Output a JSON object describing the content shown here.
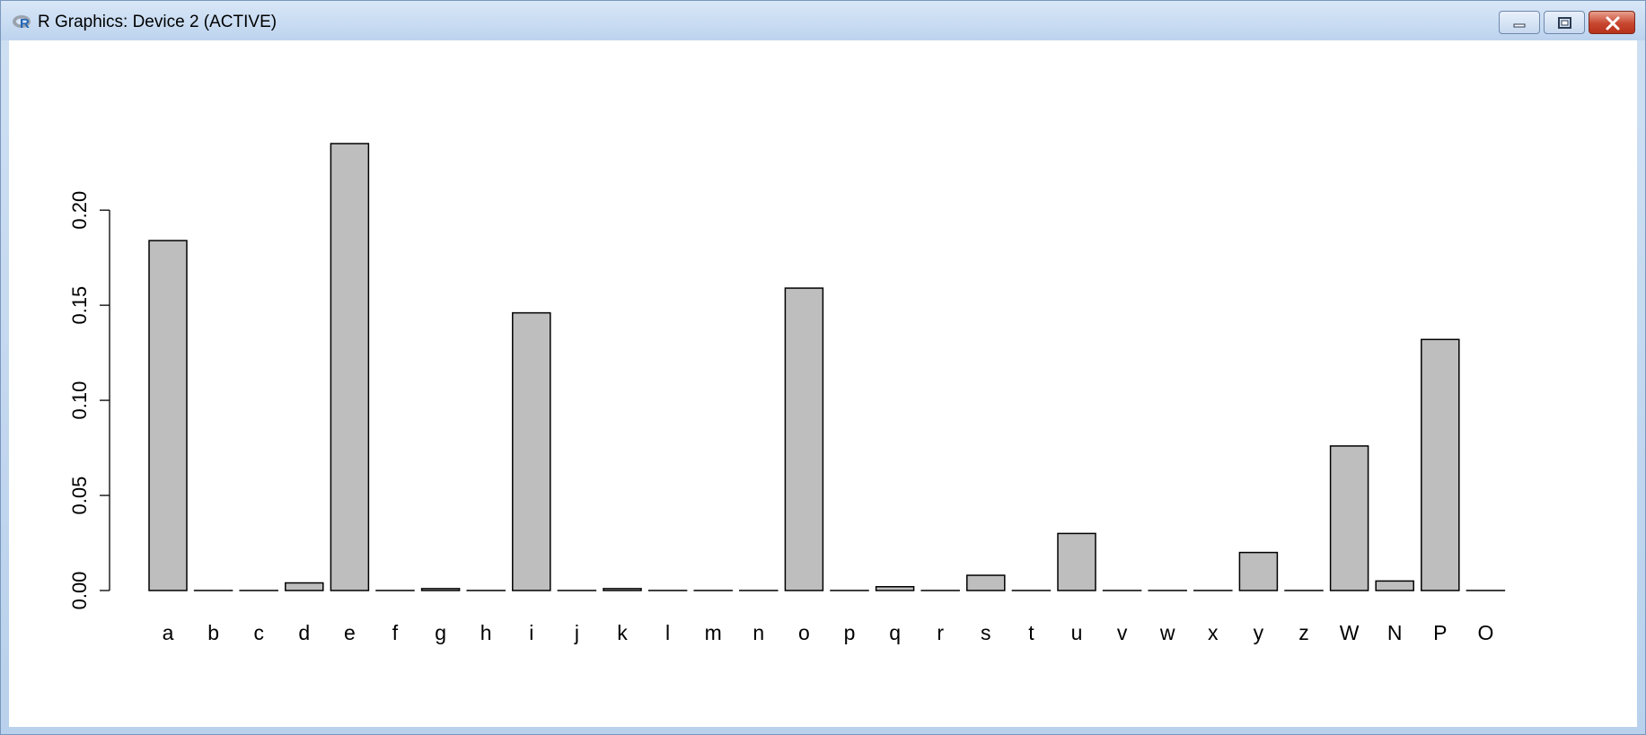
{
  "window": {
    "title": "R Graphics: Device 2 (ACTIVE)",
    "icon": "r-logo-icon",
    "controls": [
      "minimize-icon",
      "restore-icon",
      "close-icon"
    ],
    "colors": {
      "close": "#c8462f",
      "titlebar": "#c9dcf0"
    }
  },
  "chart_data": {
    "type": "bar",
    "categories": [
      "a",
      "b",
      "c",
      "d",
      "e",
      "f",
      "g",
      "h",
      "i",
      "j",
      "k",
      "l",
      "m",
      "n",
      "o",
      "p",
      "q",
      "r",
      "s",
      "t",
      "u",
      "v",
      "w",
      "x",
      "y",
      "z",
      "W",
      "N",
      "P",
      "O"
    ],
    "values": [
      0.184,
      0,
      0,
      0.004,
      0.235,
      0,
      0.001,
      0,
      0.146,
      0,
      0.001,
      0,
      0,
      0,
      0.159,
      0,
      0.002,
      0,
      0.008,
      0,
      0.03,
      0,
      0,
      0,
      0.02,
      0,
      0.076,
      0.005,
      0.132,
      0
    ],
    "title": "",
    "xlabel": "",
    "ylabel": "",
    "ylim": [
      0,
      0.235
    ],
    "yticks": [
      "0.00",
      "0.05",
      "0.10",
      "0.15",
      "0.20"
    ],
    "bar_color": "#bebebe",
    "grid": false
  }
}
